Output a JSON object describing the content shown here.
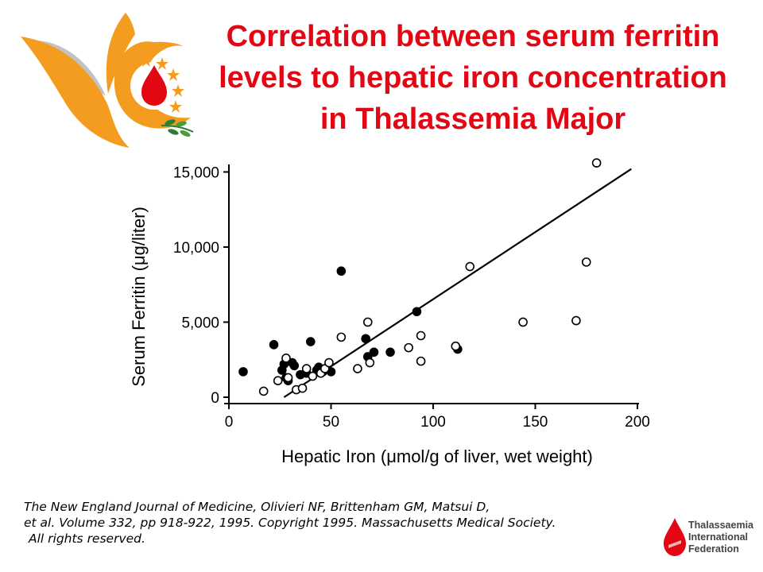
{
  "title": {
    "line1": "Correlation between serum ferritin",
    "line2": "levels to hepatic iron concentration",
    "line3": "in Thalassemia Major"
  },
  "colors": {
    "title": "#e30613",
    "logo_orange": "#f39c1f",
    "logo_red": "#e30613",
    "logo_green": "#2e7d32",
    "axis": "#000000"
  },
  "logos": {
    "left_icon": "dove-blood-drop-stars-logo",
    "right_icon": "tif-drop-logo",
    "right_text": [
      "Thalassaemia",
      "International",
      "Federation"
    ]
  },
  "citation": {
    "line1": "The New England Journal of Medicine, Olivieri NF, Brittenham GM, Matsui D,",
    "line2": "et al. Volume 332, pp 918-922, 1995. Copyright 1995. Massachusetts Medical Society.",
    "line3": "All rights reserved."
  },
  "chart_data": {
    "type": "scatter",
    "xlabel": "Hepatic Iron (μmol/g of liver, wet weight)",
    "ylabel": "Serum Ferritin (μg/liter)",
    "xlim": [
      0,
      200
    ],
    "ylim": [
      0,
      15500
    ],
    "xticks": [
      0,
      50,
      100,
      150,
      200
    ],
    "xtick_labels": [
      "0",
      "50",
      "100",
      "150",
      "200"
    ],
    "yticks": [
      0,
      5000,
      10000,
      15000
    ],
    "ytick_labels": [
      "0",
      "5,000",
      "10,000",
      "15,000"
    ],
    "grid": false,
    "series": [
      {
        "marker": "filled",
        "points": [
          [
            7,
            1700
          ],
          [
            22,
            3500
          ],
          [
            26,
            1800
          ],
          [
            27,
            2200
          ],
          [
            28,
            1300
          ],
          [
            29,
            1100
          ],
          [
            31,
            2300
          ],
          [
            32,
            2100
          ],
          [
            35,
            1500
          ],
          [
            38,
            1600
          ],
          [
            40,
            3700
          ],
          [
            43,
            1800
          ],
          [
            44,
            2000
          ],
          [
            46,
            1700
          ],
          [
            50,
            1700
          ],
          [
            55,
            8400
          ],
          [
            67,
            3900
          ],
          [
            68,
            2700
          ],
          [
            71,
            3000
          ],
          [
            79,
            3000
          ],
          [
            92,
            5700
          ],
          [
            112,
            3200
          ]
        ]
      },
      {
        "marker": "open",
        "points": [
          [
            17,
            400
          ],
          [
            24,
            1100
          ],
          [
            28,
            2600
          ],
          [
            29,
            1300
          ],
          [
            33,
            500
          ],
          [
            36,
            600
          ],
          [
            38,
            1900
          ],
          [
            41,
            1400
          ],
          [
            45,
            1600
          ],
          [
            47,
            1900
          ],
          [
            49,
            2300
          ],
          [
            55,
            4000
          ],
          [
            63,
            1900
          ],
          [
            68,
            5000
          ],
          [
            69,
            2300
          ],
          [
            88,
            3300
          ],
          [
            94,
            4100
          ],
          [
            94,
            2400
          ],
          [
            111,
            3400
          ],
          [
            118,
            8700
          ],
          [
            144,
            5000
          ],
          [
            170,
            5100
          ],
          [
            175,
            9000
          ],
          [
            180,
            15600
          ]
        ]
      }
    ],
    "regression_line": {
      "x1": 27,
      "y1": 0,
      "x2": 197,
      "y2": 15200
    }
  }
}
